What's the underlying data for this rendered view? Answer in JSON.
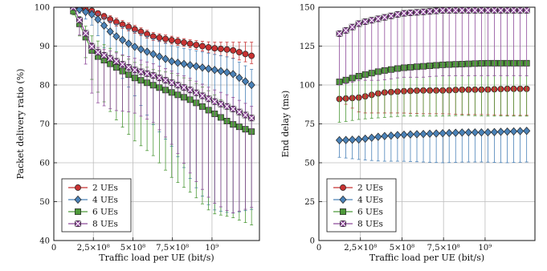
{
  "chart_data": [
    {
      "type": "line",
      "xlabel": "Traffic load per UE (bit/s)",
      "ylabel": "Packet delivery ratio (%)",
      "xlim": [
        0,
        1300000000
      ],
      "ylim": [
        40,
        100
      ],
      "x_ticks": [
        0,
        250000000,
        500000000,
        750000000,
        1000000000
      ],
      "x_tick_labels": [
        "0",
        "2,5×10⁸",
        "5×10⁸",
        "7,5×10⁸",
        "10⁹"
      ],
      "y_ticks": [
        40,
        50,
        60,
        70,
        80,
        90,
        100
      ],
      "y_tick_labels": [
        "40",
        "50",
        "60",
        "70",
        "80",
        "90",
        "100"
      ],
      "grid": true,
      "legend_position": "bottom-left",
      "x": [
        125000000,
        250000000,
        375000000,
        500000000,
        625000000,
        750000000,
        875000000,
        1000000000,
        1125000000,
        1250000000
      ],
      "series": [
        {
          "name": "2 UEs",
          "color": "#c83232",
          "marker": "circle",
          "values": [
            100,
            99,
            96.5,
            94.5,
            92.5,
            91.5,
            90.5,
            89.5,
            89,
            87.5
          ],
          "err_low": [
            0,
            0.5,
            1,
            1,
            1,
            1,
            1,
            1.5,
            2,
            2
          ],
          "err_high": [
            0,
            0.5,
            1,
            1,
            1,
            1,
            1,
            1.5,
            2,
            3.5
          ]
        },
        {
          "name": "4 UEs",
          "color": "#4a82b8",
          "marker": "diamond",
          "values": [
            100,
            98,
            93,
            90,
            88,
            86,
            85,
            84,
            83,
            80
          ],
          "err_low": [
            0,
            3,
            8,
            12,
            18,
            22,
            30,
            36,
            36,
            32
          ],
          "err_high": [
            0,
            1,
            3,
            4,
            4,
            4,
            4,
            4,
            4,
            4
          ]
        },
        {
          "name": "6 UEs",
          "color": "#4e9a3a",
          "marker": "square",
          "values": [
            99,
            88,
            85,
            82,
            80,
            78,
            76,
            73,
            70,
            68
          ],
          "err_low": [
            1,
            8,
            13,
            16,
            18,
            22,
            24,
            26,
            24,
            24
          ],
          "err_high": [
            1,
            4,
            4,
            4,
            4,
            5,
            5,
            5,
            4,
            4
          ]
        },
        {
          "name": "8 UEs",
          "color": "#8e4a9a",
          "marker": "x-square",
          "values": [
            100,
            89,
            86.5,
            84,
            82.5,
            80.5,
            78.5,
            76,
            74,
            71.5
          ],
          "err_low": [
            0,
            13,
            13,
            11,
            12,
            16,
            22,
            26,
            27,
            23
          ],
          "err_high": [
            0,
            1,
            2,
            3,
            3,
            3,
            3,
            3,
            3,
            3
          ]
        }
      ]
    },
    {
      "type": "line",
      "xlabel": "Traffic load per UE (bit/s)",
      "ylabel": "End delay (ms)",
      "xlim": [
        0,
        1300000000
      ],
      "ylim": [
        0,
        150
      ],
      "x_ticks": [
        0,
        250000000,
        500000000,
        750000000,
        1000000000
      ],
      "x_tick_labels": [
        "0",
        "2,5×10⁸",
        "5×10⁸",
        "7,5×10⁸",
        "10⁹"
      ],
      "y_ticks": [
        0,
        25,
        50,
        75,
        100,
        125,
        150
      ],
      "y_tick_labels": [
        "0",
        "25",
        "50",
        "75",
        "100",
        "125",
        "150"
      ],
      "grid": true,
      "legend_position": "bottom-left",
      "x": [
        125000000,
        250000000,
        375000000,
        500000000,
        625000000,
        750000000,
        875000000,
        1000000000,
        1125000000,
        1250000000
      ],
      "series": [
        {
          "name": "2 UEs",
          "color": "#c83232",
          "marker": "circle",
          "values": [
            91,
            92,
            95,
            96,
            96.5,
            96.5,
            97,
            97,
            97.5,
            97.5
          ],
          "err_low": [
            1,
            10,
            13,
            14,
            15,
            15,
            16,
            16,
            17,
            17
          ],
          "err_high": [
            1,
            1,
            1,
            1,
            1,
            1,
            1,
            1,
            1,
            1
          ]
        },
        {
          "name": "4 UEs",
          "color": "#4a82b8",
          "marker": "diamond",
          "values": [
            64.5,
            65,
            67,
            68,
            68.5,
            69,
            69.5,
            69.5,
            70,
            70.5
          ],
          "err_low": [
            11,
            13,
            16,
            17,
            18,
            19,
            19,
            19,
            20,
            20
          ],
          "err_high": [
            1,
            1,
            1,
            1,
            1,
            1,
            1,
            1,
            1,
            1
          ]
        },
        {
          "name": "6 UEs",
          "color": "#4e9a3a",
          "marker": "square",
          "values": [
            102,
            106,
            109,
            111,
            112,
            113,
            113.5,
            114,
            114,
            114
          ],
          "err_low": [
            26,
            28,
            30,
            31,
            32,
            33,
            33,
            34,
            34,
            34
          ],
          "err_high": [
            1,
            1,
            1,
            1,
            1,
            1,
            1,
            1,
            1,
            1
          ]
        },
        {
          "name": "8 UEs",
          "color": "#8e4a9a",
          "marker": "x-square",
          "values": [
            133,
            140,
            143,
            146,
            147,
            148,
            148,
            148,
            148,
            148
          ],
          "err_low": [
            33,
            37,
            40,
            41,
            42,
            42,
            42,
            42,
            42,
            42
          ],
          "err_high": [
            1,
            1,
            1,
            1,
            1,
            1,
            1,
            1,
            1,
            1
          ]
        }
      ]
    }
  ]
}
